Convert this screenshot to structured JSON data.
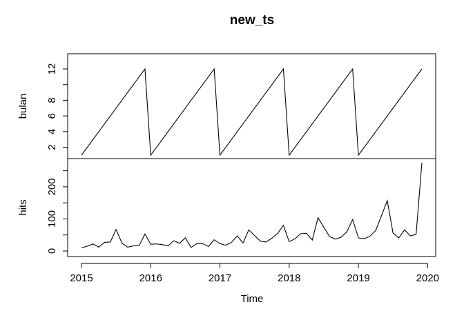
{
  "chart_data": {
    "type": "line",
    "title": "new_ts",
    "xlabel": "Time",
    "x_start": "2015-01",
    "frequency": "monthly",
    "xlim": [
      2015,
      2020
    ],
    "x_ticks": [
      2015,
      2016,
      2017,
      2018,
      2019,
      2020
    ],
    "x_tick_labels": [
      "2015",
      "2016",
      "2017",
      "2018",
      "2019",
      "2020"
    ],
    "panels": [
      {
        "name": "bulan",
        "ylabel": "bulan",
        "ylim": [
          1,
          12
        ],
        "y_ticks": [
          2,
          4,
          6,
          8,
          10,
          12
        ],
        "y_tick_labels": [
          "2",
          "4",
          "6",
          "8",
          "",
          "12"
        ],
        "values": [
          1,
          2,
          3,
          4,
          5,
          6,
          7,
          8,
          9,
          10,
          11,
          12,
          1,
          2,
          3,
          4,
          5,
          6,
          7,
          8,
          9,
          10,
          11,
          12,
          1,
          2,
          3,
          4,
          5,
          6,
          7,
          8,
          9,
          10,
          11,
          12,
          1,
          2,
          3,
          4,
          5,
          6,
          7,
          8,
          9,
          10,
          11,
          12,
          1,
          2,
          3,
          4,
          5,
          6,
          7,
          8,
          9,
          10,
          11,
          12
        ]
      },
      {
        "name": "hits",
        "ylabel": "hits",
        "ylim": [
          0,
          275
        ],
        "y_ticks": [
          0,
          50,
          100,
          150,
          200,
          250
        ],
        "y_tick_labels": [
          "0",
          "",
          "100",
          "",
          "200",
          ""
        ],
        "values": [
          10,
          15,
          22,
          12,
          27,
          28,
          67,
          25,
          12,
          16,
          17,
          53,
          21,
          22,
          20,
          16,
          32,
          24,
          41,
          11,
          23,
          23,
          14,
          35,
          23,
          18,
          27,
          47,
          25,
          66,
          48,
          31,
          28,
          40,
          55,
          80,
          29,
          38,
          54,
          55,
          34,
          104,
          74,
          45,
          37,
          43,
          60,
          98,
          41,
          38,
          46,
          64,
          110,
          157,
          56,
          41,
          66,
          47,
          52,
          275
        ]
      }
    ],
    "grid": false
  }
}
